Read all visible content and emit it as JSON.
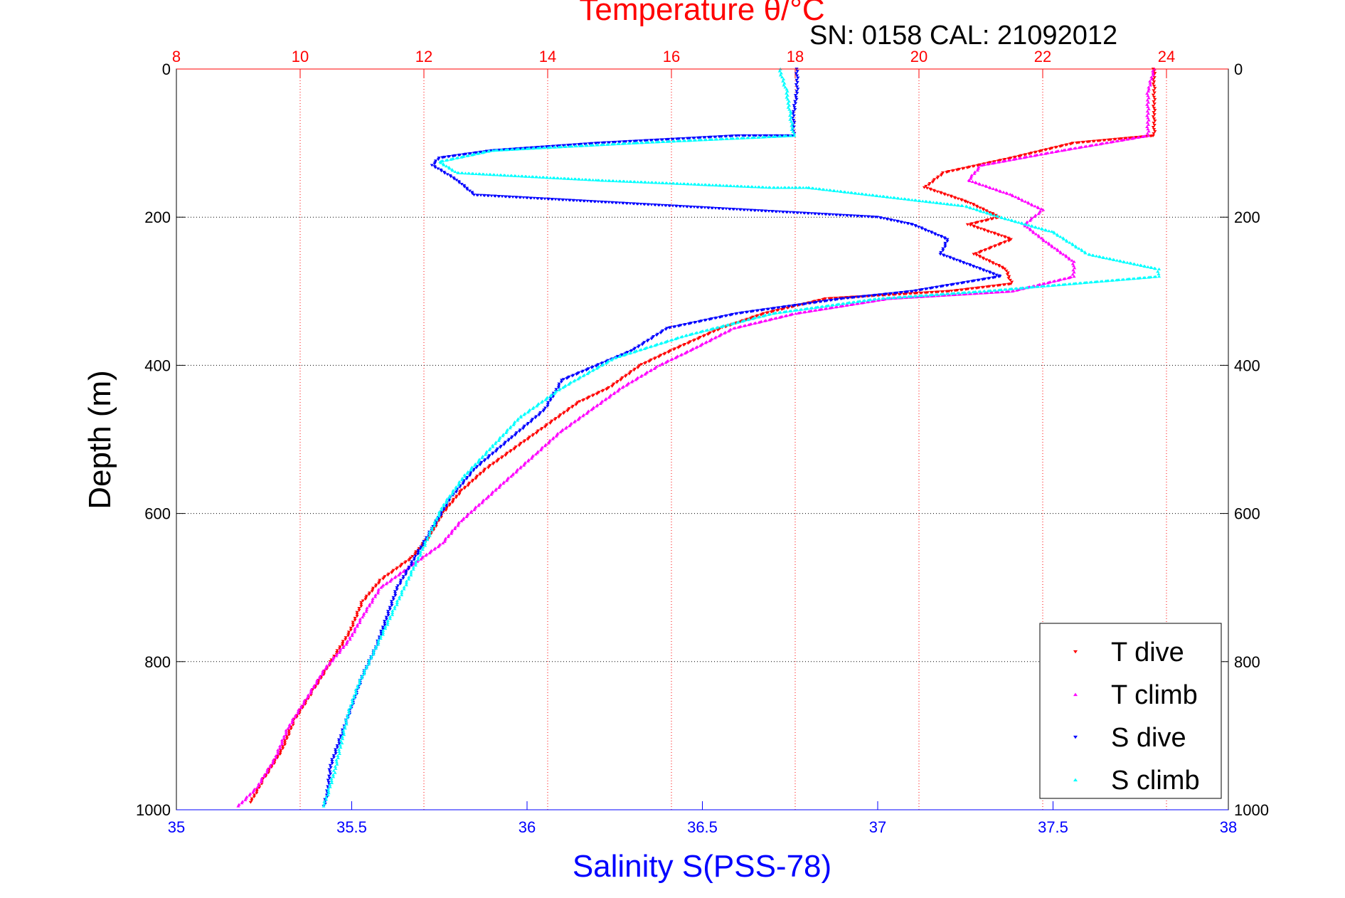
{
  "chart_data": {
    "type": "scatter",
    "title": "Temperature θ/°C",
    "annotation": "SN: 0158  CAL: 21092012",
    "ylabel": "Depth (m)",
    "xlabel_bottom": "Salinity S(PSS-78)",
    "ylim": [
      0,
      1000
    ],
    "y_reversed": true,
    "yticks": [
      "0",
      "200",
      "400",
      "600",
      "800",
      "1000"
    ],
    "x_top": {
      "label": "Temperature θ/°C",
      "range": [
        8,
        25
      ],
      "ticks": [
        "8",
        "10",
        "12",
        "14",
        "16",
        "18",
        "20",
        "22",
        "24"
      ],
      "grid": true,
      "color": "#ff0000"
    },
    "x_bottom": {
      "label": "Salinity S(PSS-78)",
      "range": [
        35,
        38
      ],
      "ticks": [
        "35",
        "35.5",
        "36",
        "36.5",
        "37",
        "37.5",
        "38"
      ],
      "grid": false,
      "color": "#0000ff"
    },
    "y_grid": true,
    "legend_position": "bottom-right",
    "series": [
      {
        "name": "T dive",
        "axis": "temperature",
        "color": "#ff0000",
        "marker": "triangle-down",
        "points": [
          [
            23.8,
            0
          ],
          [
            23.8,
            20
          ],
          [
            23.8,
            50
          ],
          [
            23.8,
            90
          ],
          [
            22.5,
            100
          ],
          [
            21.5,
            120
          ],
          [
            20.4,
            140
          ],
          [
            20.1,
            160
          ],
          [
            20.8,
            180
          ],
          [
            21.3,
            200
          ],
          [
            20.8,
            210
          ],
          [
            21.5,
            230
          ],
          [
            20.9,
            250
          ],
          [
            21.4,
            270
          ],
          [
            21.5,
            290
          ],
          [
            20.5,
            300
          ],
          [
            18.5,
            310
          ],
          [
            17.5,
            330
          ],
          [
            16.8,
            350
          ],
          [
            16.0,
            380
          ],
          [
            15.5,
            400
          ],
          [
            15.0,
            430
          ],
          [
            14.5,
            450
          ],
          [
            14.0,
            480
          ],
          [
            13.5,
            510
          ],
          [
            13.0,
            540
          ],
          [
            12.6,
            570
          ],
          [
            12.3,
            600
          ],
          [
            12.1,
            630
          ],
          [
            11.8,
            660
          ],
          [
            11.3,
            690
          ],
          [
            11.0,
            720
          ],
          [
            10.8,
            760
          ],
          [
            10.5,
            800
          ],
          [
            10.2,
            840
          ],
          [
            9.9,
            880
          ],
          [
            9.7,
            920
          ],
          [
            9.4,
            960
          ],
          [
            9.2,
            990
          ]
        ]
      },
      {
        "name": "T climb",
        "axis": "temperature",
        "color": "#ff00ff",
        "marker": "triangle-up",
        "points": [
          [
            23.8,
            0
          ],
          [
            23.7,
            30
          ],
          [
            23.7,
            60
          ],
          [
            23.7,
            90
          ],
          [
            22.3,
            110
          ],
          [
            21.0,
            130
          ],
          [
            20.8,
            150
          ],
          [
            21.5,
            170
          ],
          [
            22.0,
            190
          ],
          [
            21.7,
            210
          ],
          [
            22.0,
            230
          ],
          [
            22.5,
            260
          ],
          [
            22.5,
            280
          ],
          [
            21.5,
            300
          ],
          [
            19.5,
            310
          ],
          [
            18.0,
            330
          ],
          [
            17.0,
            350
          ],
          [
            16.3,
            380
          ],
          [
            15.8,
            400
          ],
          [
            15.2,
            430
          ],
          [
            14.7,
            460
          ],
          [
            14.2,
            490
          ],
          [
            13.8,
            520
          ],
          [
            13.4,
            550
          ],
          [
            13.0,
            580
          ],
          [
            12.6,
            610
          ],
          [
            12.3,
            640
          ],
          [
            11.8,
            670
          ],
          [
            11.3,
            700
          ],
          [
            11.0,
            740
          ],
          [
            10.8,
            770
          ],
          [
            10.4,
            810
          ],
          [
            10.1,
            850
          ],
          [
            9.8,
            890
          ],
          [
            9.6,
            930
          ],
          [
            9.3,
            970
          ],
          [
            9.0,
            995
          ]
        ]
      },
      {
        "name": "S dive",
        "axis": "salinity",
        "color": "#0000ff",
        "marker": "triangle-down",
        "points": [
          [
            36.77,
            0
          ],
          [
            36.77,
            30
          ],
          [
            36.76,
            60
          ],
          [
            36.76,
            90
          ],
          [
            36.6,
            90
          ],
          [
            36.2,
            100
          ],
          [
            35.9,
            110
          ],
          [
            35.75,
            120
          ],
          [
            35.73,
            130
          ],
          [
            35.8,
            150
          ],
          [
            35.85,
            170
          ],
          [
            37.0,
            200
          ],
          [
            37.1,
            210
          ],
          [
            37.2,
            230
          ],
          [
            37.18,
            250
          ],
          [
            37.35,
            280
          ],
          [
            37.1,
            300
          ],
          [
            36.9,
            310
          ],
          [
            36.6,
            330
          ],
          [
            36.4,
            350
          ],
          [
            36.3,
            380
          ],
          [
            36.1,
            420
          ],
          [
            36.05,
            460
          ],
          [
            35.95,
            500
          ],
          [
            35.85,
            540
          ],
          [
            35.78,
            580
          ],
          [
            35.73,
            620
          ],
          [
            35.68,
            660
          ],
          [
            35.63,
            700
          ],
          [
            35.6,
            740
          ],
          [
            35.57,
            780
          ],
          [
            35.53,
            820
          ],
          [
            35.5,
            860
          ],
          [
            35.47,
            900
          ],
          [
            35.44,
            940
          ],
          [
            35.43,
            980
          ],
          [
            35.42,
            995
          ]
        ]
      },
      {
        "name": "S climb",
        "axis": "salinity",
        "color": "#00ffff",
        "marker": "triangle-up",
        "points": [
          [
            36.72,
            0
          ],
          [
            36.74,
            30
          ],
          [
            36.75,
            60
          ],
          [
            36.76,
            90
          ],
          [
            36.3,
            100
          ],
          [
            35.9,
            110
          ],
          [
            35.75,
            125
          ],
          [
            35.8,
            140
          ],
          [
            36.2,
            150
          ],
          [
            36.7,
            160
          ],
          [
            36.8,
            160
          ],
          [
            37.25,
            185
          ],
          [
            37.35,
            200
          ],
          [
            37.5,
            220
          ],
          [
            37.6,
            250
          ],
          [
            37.8,
            270
          ],
          [
            37.8,
            280
          ],
          [
            37.3,
            300
          ],
          [
            37.0,
            310
          ],
          [
            36.7,
            330
          ],
          [
            36.45,
            360
          ],
          [
            36.25,
            390
          ],
          [
            36.1,
            430
          ],
          [
            35.98,
            470
          ],
          [
            35.9,
            510
          ],
          [
            35.82,
            550
          ],
          [
            35.76,
            590
          ],
          [
            35.72,
            630
          ],
          [
            35.68,
            670
          ],
          [
            35.64,
            710
          ],
          [
            35.6,
            750
          ],
          [
            35.56,
            790
          ],
          [
            35.52,
            830
          ],
          [
            35.49,
            870
          ],
          [
            35.47,
            910
          ],
          [
            35.45,
            950
          ],
          [
            35.43,
            980
          ],
          [
            35.42,
            995
          ]
        ]
      }
    ]
  }
}
